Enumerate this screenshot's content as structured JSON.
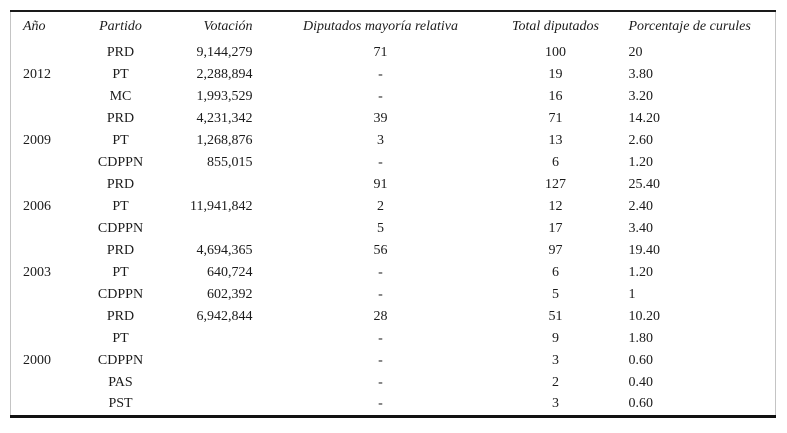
{
  "table": {
    "columns": [
      {
        "key": "ano",
        "label": "Año"
      },
      {
        "key": "partido",
        "label": "Partido"
      },
      {
        "key": "votacion",
        "label": "Votación"
      },
      {
        "key": "diputados_mr",
        "label": "Diputados mayoría relativa"
      },
      {
        "key": "total_diputados",
        "label": "Total diputados"
      },
      {
        "key": "porcentaje",
        "label": "Porcentaje de curules"
      }
    ],
    "rows": [
      {
        "cells": [
          "",
          "PRD",
          "9,144,279",
          "71",
          "100",
          "20"
        ]
      },
      {
        "cells": [
          "2012",
          "PT",
          "2,288,894",
          "-",
          "19",
          "3.80"
        ]
      },
      {
        "cells": [
          "",
          "MC",
          "1,993,529",
          "-",
          "16",
          "3.20"
        ]
      },
      {
        "cells": [
          "",
          "PRD",
          "4,231,342",
          "39",
          "71",
          "14.20"
        ]
      },
      {
        "cells": [
          "2009",
          "PT",
          "1,268,876",
          "3",
          "13",
          "2.60"
        ]
      },
      {
        "cells": [
          "",
          "CDPPN",
          "855,015",
          "-",
          "6",
          "1.20"
        ]
      },
      {
        "cells": [
          "",
          "PRD",
          "",
          "91",
          "127",
          "25.40"
        ]
      },
      {
        "cells": [
          "2006",
          "PT",
          "11,941,842",
          "2",
          "12",
          "2.40"
        ]
      },
      {
        "cells": [
          "",
          "CDPPN",
          "",
          "5",
          "17",
          "3.40"
        ]
      },
      {
        "cells": [
          "",
          "PRD",
          "4,694,365",
          "56",
          "97",
          "19.40"
        ]
      },
      {
        "cells": [
          "2003",
          "PT",
          "640,724",
          "-",
          "6",
          "1.20"
        ]
      },
      {
        "cells": [
          "",
          "CDPPN",
          "602,392",
          "-",
          "5",
          "1"
        ]
      },
      {
        "cells": [
          "",
          "PRD",
          "6,942,844",
          "28",
          "51",
          "10.20"
        ]
      },
      {
        "cells": [
          "",
          "PT",
          "",
          "-",
          "9",
          "1.80"
        ]
      },
      {
        "cells": [
          "2000",
          "CDPPN",
          "",
          "-",
          "3",
          "0.60"
        ]
      },
      {
        "cells": [
          "",
          "PAS",
          "",
          "-",
          "2",
          "0.40"
        ]
      },
      {
        "cells": [
          "",
          "PST",
          "",
          "-",
          "3",
          "0.60"
        ]
      }
    ],
    "colors": {
      "text": "#1b1b1b",
      "rule_heavy": "#111111",
      "rule_light": "#c4c4c4",
      "background": "#ffffff"
    }
  }
}
